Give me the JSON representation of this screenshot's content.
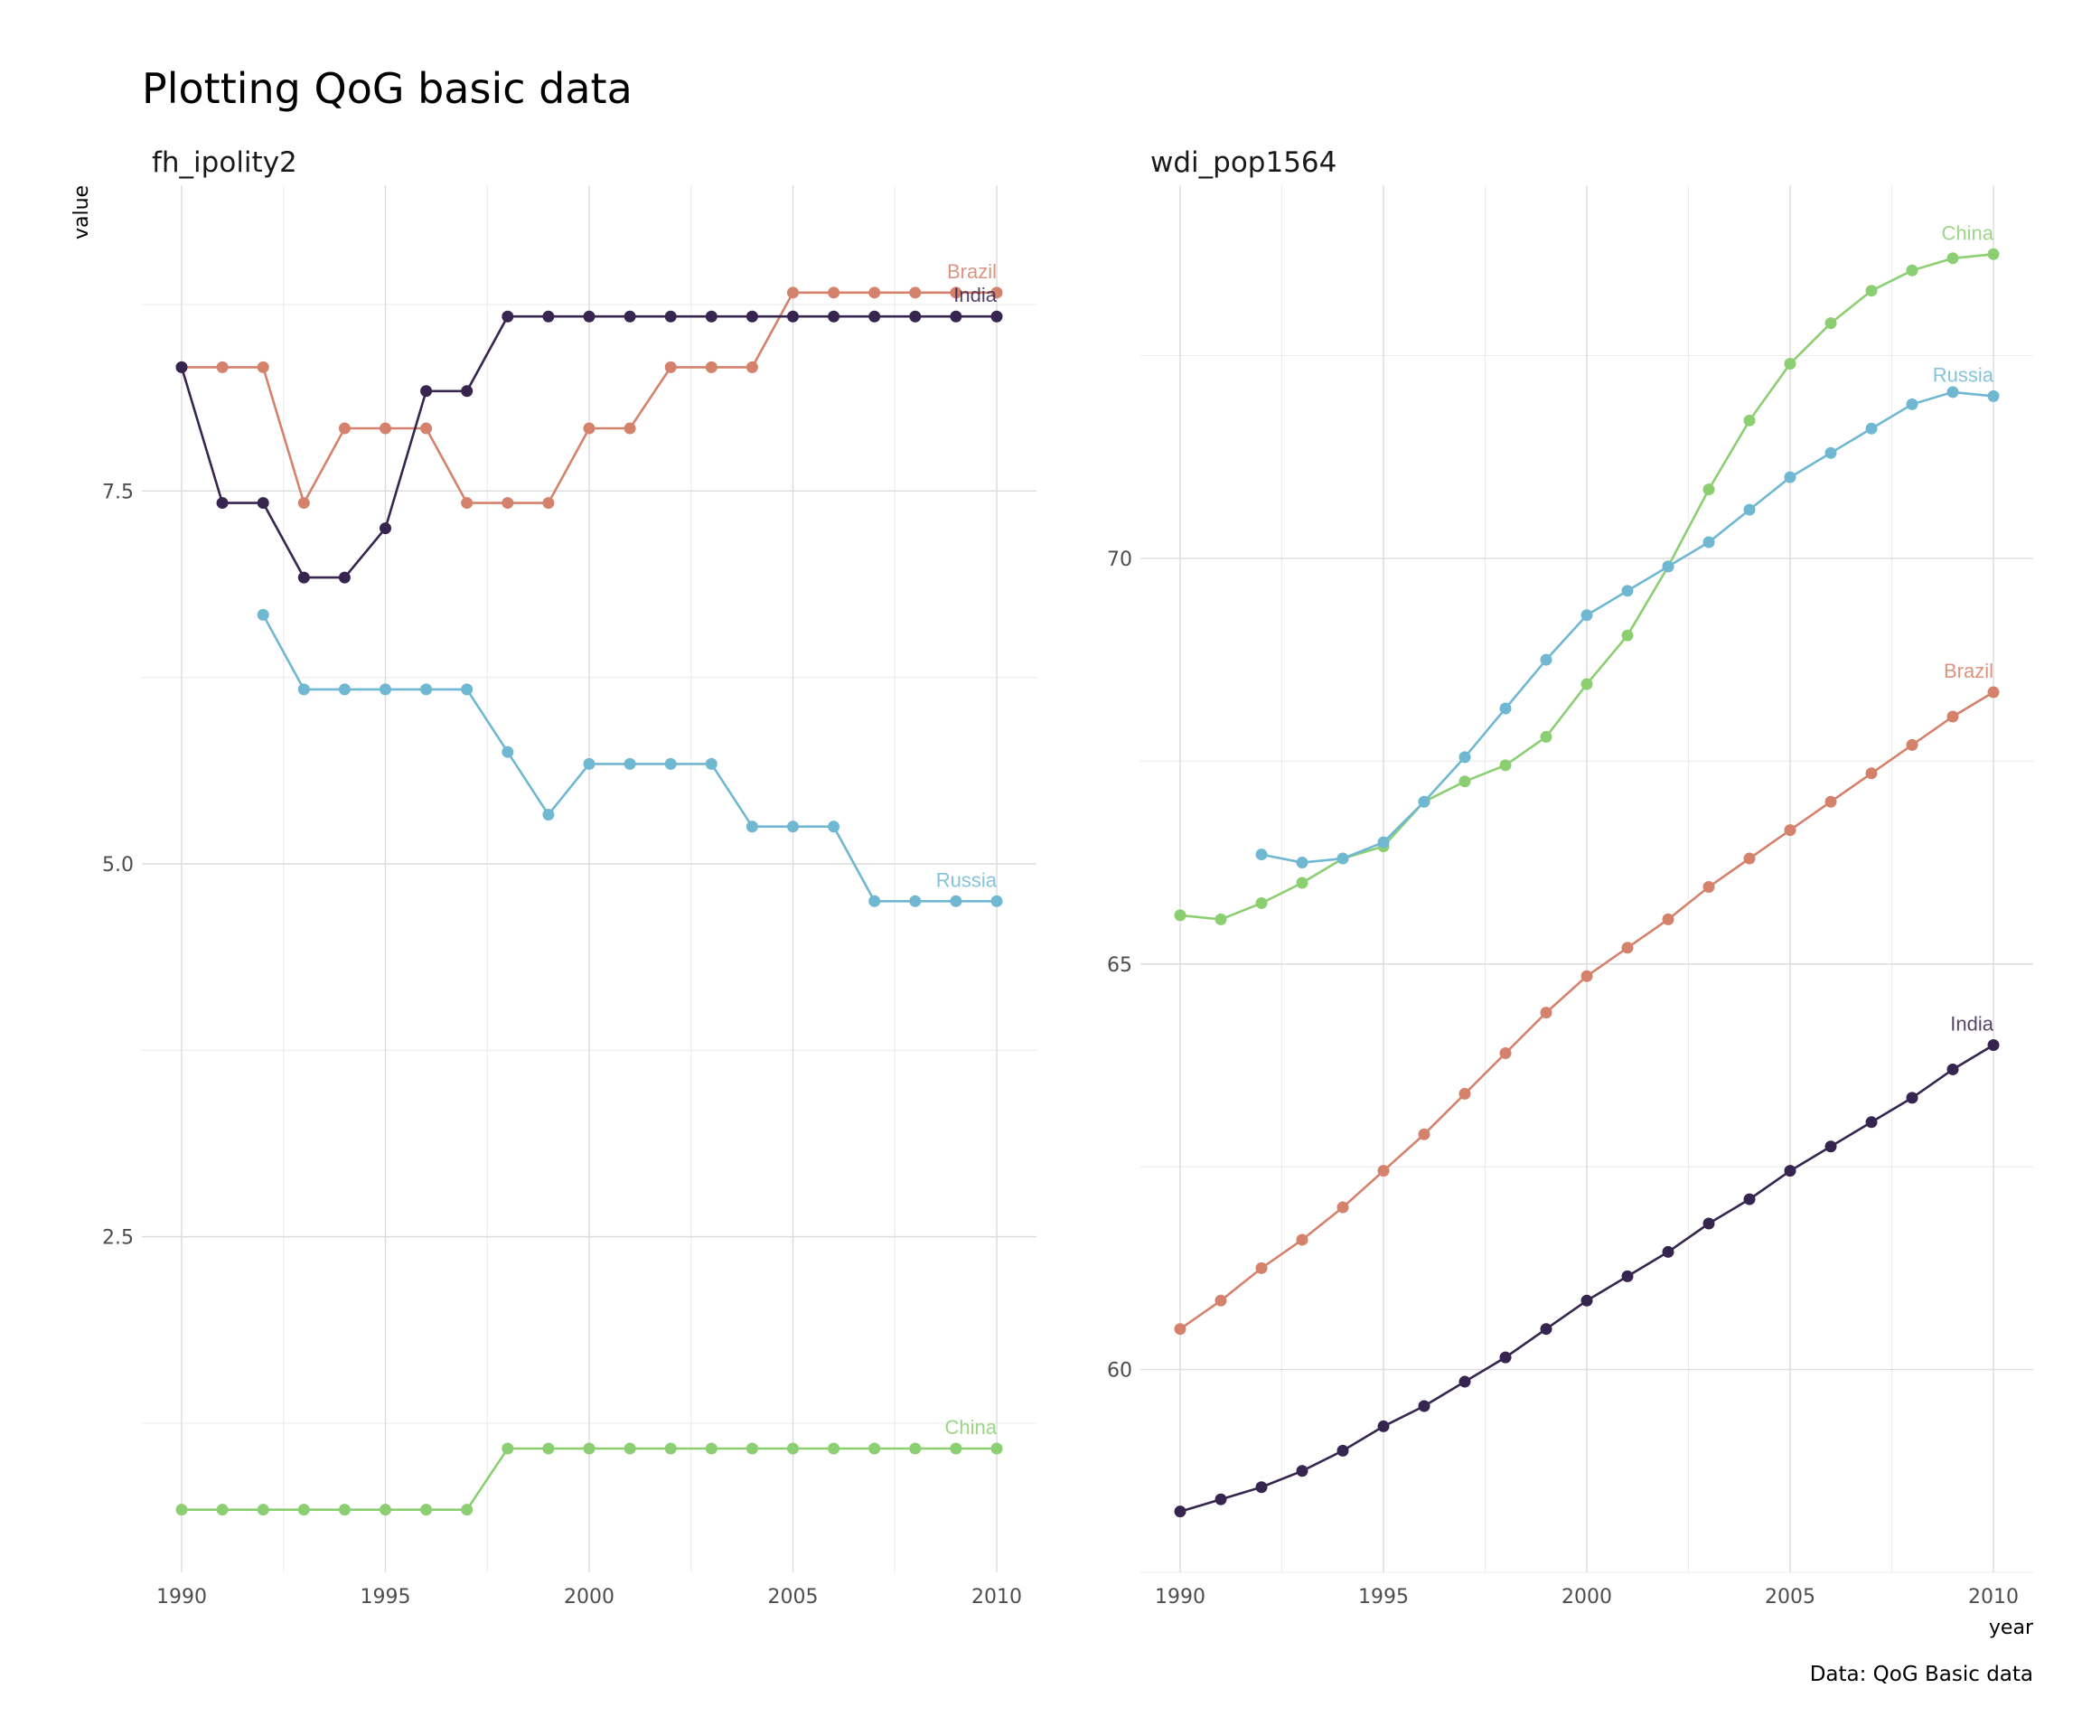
{
  "title": "Plotting QoG basic data",
  "caption": "Data: QoG Basic data",
  "colors": {
    "Brazil": "#D4826C",
    "China": "#8CCF72",
    "India": "#36264F",
    "Russia": "#70B8D2"
  },
  "chart_data": [
    {
      "type": "line",
      "facet": "fh_ipolity2",
      "ylabel": "value",
      "xlabel": "",
      "xlim": [
        1990,
        2010
      ],
      "ylim": [
        0.25,
        9.55
      ],
      "x_ticks": [
        "1990",
        "1995",
        "2000",
        "2005",
        "2010"
      ],
      "y_ticks": [
        "2.5",
        "5.0",
        "7.5"
      ],
      "grid": true,
      "series": [
        {
          "name": "Brazil",
          "x": [
            1990,
            1991,
            1992,
            1993,
            1994,
            1995,
            1996,
            1997,
            1998,
            1999,
            2000,
            2001,
            2002,
            2003,
            2004,
            2005,
            2006,
            2007,
            2008,
            2009,
            2010
          ],
          "values": [
            8.33,
            8.33,
            8.33,
            7.42,
            7.92,
            7.92,
            7.92,
            7.42,
            7.42,
            7.42,
            7.92,
            7.92,
            8.33,
            8.33,
            8.33,
            8.83,
            8.83,
            8.83,
            8.83,
            8.83,
            8.83
          ]
        },
        {
          "name": "India",
          "x": [
            1990,
            1991,
            1992,
            1993,
            1994,
            1995,
            1996,
            1997,
            1998,
            1999,
            2000,
            2001,
            2002,
            2003,
            2004,
            2005,
            2006,
            2007,
            2008,
            2009,
            2010
          ],
          "values": [
            8.33,
            7.42,
            7.42,
            6.92,
            6.92,
            7.25,
            8.17,
            8.17,
            8.67,
            8.67,
            8.67,
            8.67,
            8.67,
            8.67,
            8.67,
            8.67,
            8.67,
            8.67,
            8.67,
            8.67,
            8.67
          ]
        },
        {
          "name": "Russia",
          "x": [
            1992,
            1993,
            1994,
            1995,
            1996,
            1997,
            1998,
            1999,
            2000,
            2001,
            2002,
            2003,
            2004,
            2005,
            2006,
            2007,
            2008,
            2009,
            2010
          ],
          "values": [
            6.67,
            6.17,
            6.17,
            6.17,
            6.17,
            6.17,
            5.75,
            5.33,
            5.67,
            5.67,
            5.67,
            5.67,
            5.25,
            5.25,
            5.25,
            4.75,
            4.75,
            4.75,
            4.75
          ]
        },
        {
          "name": "China",
          "x": [
            1990,
            1991,
            1992,
            1993,
            1994,
            1995,
            1996,
            1997,
            1998,
            1999,
            2000,
            2001,
            2002,
            2003,
            2004,
            2005,
            2006,
            2007,
            2008,
            2009,
            2010
          ],
          "values": [
            0.67,
            0.67,
            0.67,
            0.67,
            0.67,
            0.67,
            0.67,
            0.67,
            1.08,
            1.08,
            1.08,
            1.08,
            1.08,
            1.08,
            1.08,
            1.08,
            1.08,
            1.08,
            1.08,
            1.08,
            1.08
          ]
        }
      ],
      "end_labels": [
        "Brazil",
        "India",
        "Russia",
        "China"
      ]
    },
    {
      "type": "line",
      "facet": "wdi_pop1564",
      "xlabel": "year",
      "ylabel": "",
      "xlim": [
        1990,
        2010
      ],
      "ylim": [
        57.5,
        74.6
      ],
      "x_ticks": [
        "1990",
        "1995",
        "2000",
        "2005",
        "2010"
      ],
      "y_ticks": [
        "60",
        "65",
        "70"
      ],
      "grid": true,
      "series": [
        {
          "name": "China",
          "x": [
            1990,
            1991,
            1992,
            1993,
            1994,
            1995,
            1996,
            1997,
            1998,
            1999,
            2000,
            2001,
            2002,
            2003,
            2004,
            2005,
            2006,
            2007,
            2008,
            2009,
            2010
          ],
          "values": [
            65.6,
            65.55,
            65.75,
            66.0,
            66.3,
            66.45,
            67.0,
            67.25,
            67.45,
            67.8,
            68.45,
            69.05,
            69.9,
            70.85,
            71.7,
            72.4,
            72.9,
            73.3,
            73.55,
            73.7,
            73.75
          ]
        },
        {
          "name": "Russia",
          "x": [
            1992,
            1993,
            1994,
            1995,
            1996,
            1997,
            1998,
            1999,
            2000,
            2001,
            2002,
            2003,
            2004,
            2005,
            2006,
            2007,
            2008,
            2009,
            2010
          ],
          "values": [
            66.35,
            66.25,
            66.3,
            66.5,
            67.0,
            67.55,
            68.15,
            68.75,
            69.3,
            69.6,
            69.9,
            70.2,
            70.6,
            71.0,
            71.3,
            71.6,
            71.9,
            72.05,
            72.0
          ]
        },
        {
          "name": "Brazil",
          "x": [
            1990,
            1991,
            1992,
            1993,
            1994,
            1995,
            1996,
            1997,
            1998,
            1999,
            2000,
            2001,
            2002,
            2003,
            2004,
            2005,
            2006,
            2007,
            2008,
            2009,
            2010
          ],
          "values": [
            60.5,
            60.85,
            61.25,
            61.6,
            62.0,
            62.45,
            62.9,
            63.4,
            63.9,
            64.4,
            64.85,
            65.2,
            65.55,
            65.95,
            66.3,
            66.65,
            67.0,
            67.35,
            67.7,
            68.05,
            68.35
          ]
        },
        {
          "name": "India",
          "x": [
            1990,
            1991,
            1992,
            1993,
            1994,
            1995,
            1996,
            1997,
            1998,
            1999,
            2000,
            2001,
            2002,
            2003,
            2004,
            2005,
            2006,
            2007,
            2008,
            2009,
            2010
          ],
          "values": [
            58.25,
            58.4,
            58.55,
            58.75,
            59.0,
            59.3,
            59.55,
            59.85,
            60.15,
            60.5,
            60.85,
            61.15,
            61.45,
            61.8,
            62.1,
            62.45,
            62.75,
            63.05,
            63.35,
            63.7,
            64.0
          ]
        }
      ],
      "end_labels": [
        "China",
        "Russia",
        "Brazil",
        "India"
      ]
    }
  ]
}
